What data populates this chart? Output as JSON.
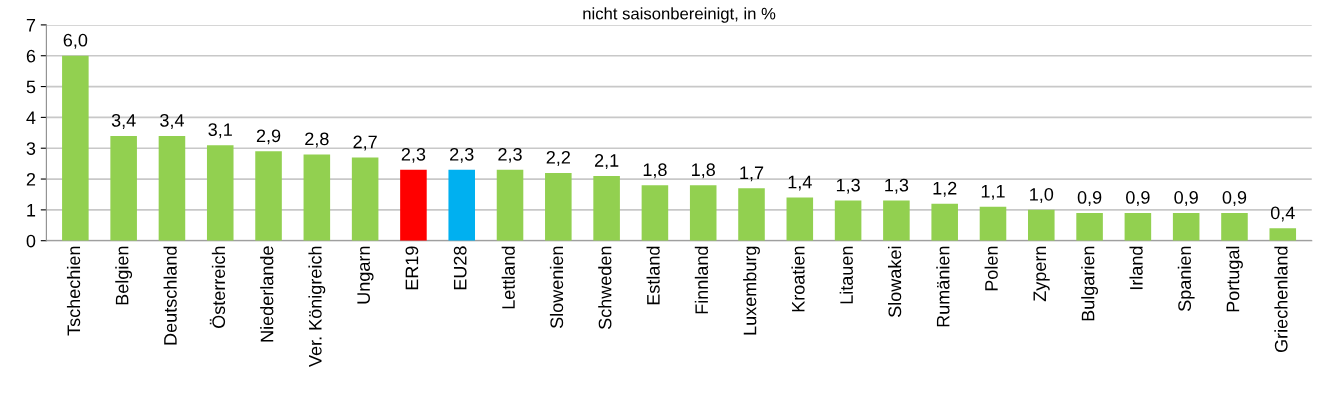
{
  "chart_data": {
    "type": "bar",
    "title": "nicht saisonbereinigt, in %",
    "categories": [
      "Tschechien",
      "Belgien",
      "Deutschland",
      "Österreich",
      "Niederlande",
      "Ver. Königreich",
      "Ungarn",
      "ER19",
      "EU28",
      "Lettland",
      "Slowenien",
      "Schweden",
      "Estland",
      "Finnland",
      "Luxemburg",
      "Kroatien",
      "Litauen",
      "Slowakei",
      "Rumänien",
      "Polen",
      "Zypern",
      "Bulgarien",
      "Irland",
      "Spanien",
      "Portugal",
      "Griechenland"
    ],
    "values": [
      6.0,
      3.4,
      3.4,
      3.1,
      2.9,
      2.8,
      2.7,
      2.3,
      2.3,
      2.3,
      2.2,
      2.1,
      1.8,
      1.8,
      1.7,
      1.4,
      1.3,
      1.3,
      1.2,
      1.1,
      1.0,
      0.9,
      0.9,
      0.9,
      0.9,
      0.4
    ],
    "value_labels": [
      "6,0",
      "3,4",
      "3,4",
      "3,1",
      "2,9",
      "2,8",
      "2,7",
      "2,3",
      "2,3",
      "2,3",
      "2,2",
      "2,1",
      "1,8",
      "1,8",
      "1,7",
      "1,4",
      "1,3",
      "1,3",
      "1,2",
      "1,1",
      "1,0",
      "0,9",
      "0,9",
      "0,9",
      "0,9",
      "0,4"
    ],
    "colors": [
      "#92d050",
      "#92d050",
      "#92d050",
      "#92d050",
      "#92d050",
      "#92d050",
      "#92d050",
      "#ff0000",
      "#00b0f0",
      "#92d050",
      "#92d050",
      "#92d050",
      "#92d050",
      "#92d050",
      "#92d050",
      "#92d050",
      "#92d050",
      "#92d050",
      "#92d050",
      "#92d050",
      "#92d050",
      "#92d050",
      "#92d050",
      "#92d050",
      "#92d050",
      "#92d050"
    ],
    "ylim": [
      0,
      7
    ],
    "yticks": [
      0,
      1,
      2,
      3,
      4,
      5,
      6,
      7
    ],
    "grid": "y",
    "legend": false
  }
}
